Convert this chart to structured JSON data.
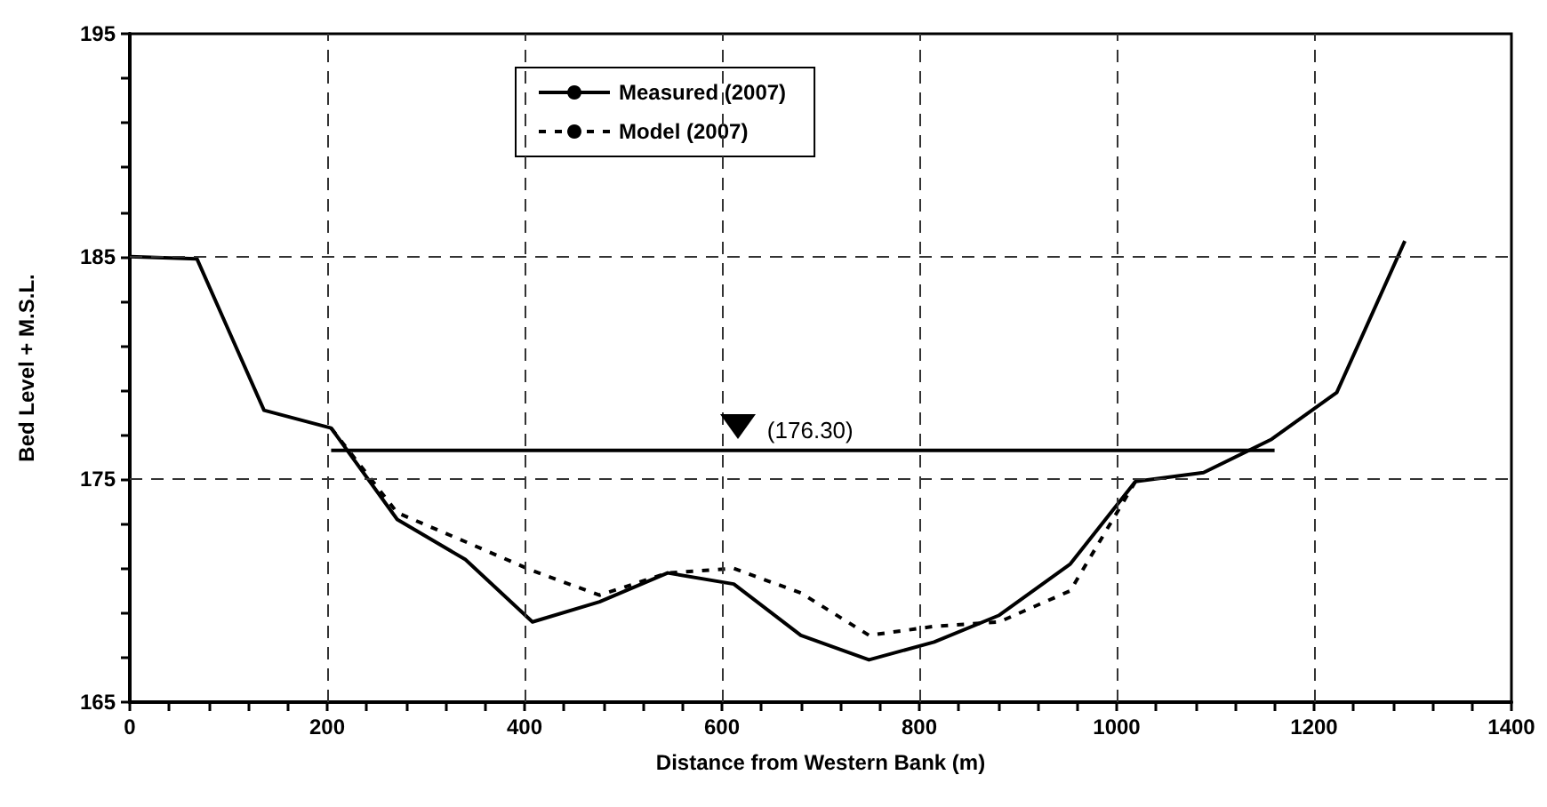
{
  "chart_data": {
    "type": "line",
    "xlabel": "Distance from Western Bank (m)",
    "ylabel": "Bed Level + M.S.L.",
    "xlim": [
      0,
      1400
    ],
    "ylim": [
      165,
      195
    ],
    "xticks": [
      0,
      {
        "value": 40,
        "label": null
      },
      {
        "value": 80,
        "label": null
      },
      {
        "value": 120,
        "label": null
      },
      {
        "value": 160,
        "label": null
      },
      200,
      {
        "value": 240,
        "label": null
      },
      {
        "value": 280,
        "label": null
      },
      {
        "value": 320,
        "label": null
      },
      {
        "value": 360,
        "label": null
      },
      400,
      {
        "value": 440,
        "label": null
      },
      {
        "value": 480,
        "label": null
      },
      {
        "value": 520,
        "label": null
      },
      {
        "value": 560,
        "label": null
      },
      600,
      {
        "value": 640,
        "label": null
      },
      {
        "value": 680,
        "label": null
      },
      {
        "value": 720,
        "label": null
      },
      {
        "value": 760,
        "label": null
      },
      800,
      {
        "value": 840,
        "label": null
      },
      {
        "value": 880,
        "label": null
      },
      {
        "value": 920,
        "label": null
      },
      {
        "value": 960,
        "label": null
      },
      1000,
      {
        "value": 1040,
        "label": null
      },
      {
        "value": 1080,
        "label": null
      },
      {
        "value": 1120,
        "label": null
      },
      {
        "value": 1160,
        "label": null
      },
      1200,
      {
        "value": 1240,
        "label": null
      },
      {
        "value": 1280,
        "label": null
      },
      {
        "value": 1320,
        "label": null
      },
      {
        "value": 1360,
        "label": null
      },
      1400
    ],
    "yticks": [
      165,
      {
        "value": 167,
        "label": null
      },
      {
        "value": 169,
        "label": null
      },
      {
        "value": 171,
        "label": null
      },
      {
        "value": 173,
        "label": null
      },
      175,
      {
        "value": 177,
        "label": null
      },
      {
        "value": 179,
        "label": null
      },
      {
        "value": 181,
        "label": null
      },
      {
        "value": 183,
        "label": null
      },
      185,
      {
        "value": 187,
        "label": null
      },
      {
        "value": 189,
        "label": null
      },
      {
        "value": 191,
        "label": null
      },
      {
        "value": 193,
        "label": null
      },
      195
    ],
    "grid": true,
    "legend": "top",
    "marker": "none",
    "series": [
      {
        "name": "Measured (2007)",
        "color": "#000000",
        "line_style": "solid",
        "x": [
          0,
          68,
          136,
          204,
          271,
          340,
          408,
          476,
          545,
          612,
          680,
          749,
          815,
          881,
          953,
          1019,
          1088,
          1157,
          1223,
          1292
        ],
        "values": [
          185.0,
          184.9,
          178.1,
          177.3,
          173.2,
          171.4,
          168.6,
          169.5,
          170.8,
          170.3,
          168.0,
          166.9,
          167.7,
          168.9,
          171.2,
          174.9,
          175.3,
          176.8,
          178.9,
          185.7
        ]
      },
      {
        "name": "Model (2007)",
        "color": "#000000",
        "line_style": "dotted",
        "x": [
          204,
          271,
          340,
          408,
          476,
          545,
          612,
          680,
          749,
          815,
          881,
          953,
          1019
        ],
        "values": [
          177.3,
          173.5,
          172.2,
          170.9,
          169.8,
          170.8,
          171.0,
          169.9,
          168.0,
          168.4,
          168.6,
          170.0,
          174.9
        ]
      },
      {
        "color": "#000000",
        "line_style": "solid",
        "x": [
          204,
          1160
        ],
        "values": [
          176.3,
          176.3
        ]
      }
    ],
    "annotations": [
      {
        "text": "(176.30)",
        "x": 617,
        "y": 176.3
      }
    ]
  }
}
